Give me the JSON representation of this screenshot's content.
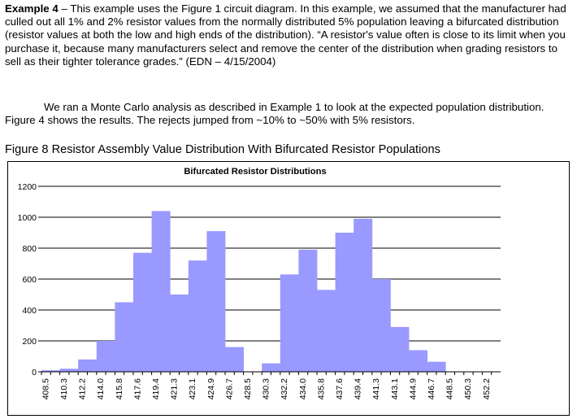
{
  "text": {
    "example_heading": "Example 4",
    "p1_body": " – This example uses the Figure 1 circuit diagram. In this example, we assumed that the manufacturer had culled out all 1% and 2% resistor values from the normally distributed 5% population leaving a bifurcated distribution (resistor values at both the low and high ends of the distribution).  “A resistor's value often is close to its limit when you purchase it, because many manufacturers select and remove the center of the distribution when grading resistors to sell as their tighter tolerance grades.” (EDN – 4/15/2004)",
    "p2": "We ran a Monte Carlo analysis as described in Example 1 to look at the expected population distribution. Figure 4 shows the results. The rejects jumped from ~10% to ~50% with 5% resistors.",
    "figure_caption": "Figure 8 Resistor Assembly Value Distribution With Bifurcated Resistor Populations"
  },
  "chart_data": {
    "type": "bar",
    "title": "Bifurcated Resistor Distributions",
    "xlabel": "",
    "ylabel": "",
    "ylim": [
      0,
      1200
    ],
    "yticks": [
      0,
      200,
      400,
      600,
      800,
      1000,
      1200
    ],
    "grid": true,
    "bar_color": "#9999ff",
    "categories": [
      "408.5",
      "",
      "410.3",
      "",
      "412.2",
      "",
      "414.0",
      "",
      "415.8",
      "",
      "417.6",
      "",
      "419.4",
      "",
      "421.3",
      "",
      "423.1",
      "",
      "424.9",
      "",
      "426.7",
      "",
      "428.5",
      "",
      "430.3",
      "",
      "432.2",
      "",
      "434.0",
      "",
      "435.8",
      "",
      "437.6",
      "",
      "439.4",
      "",
      "441.3",
      "",
      "443.1",
      "",
      "444.9",
      "",
      "446.7",
      "",
      "448.5",
      "",
      "450.3",
      "",
      "452.2",
      ""
    ],
    "values": [
      10,
      10,
      20,
      20,
      80,
      80,
      200,
      200,
      450,
      450,
      770,
      770,
      1040,
      1040,
      500,
      500,
      720,
      720,
      910,
      910,
      160,
      160,
      0,
      0,
      55,
      55,
      630,
      630,
      790,
      790,
      530,
      530,
      900,
      900,
      990,
      990,
      600,
      600,
      290,
      290,
      140,
      140,
      65,
      65,
      0,
      0,
      0,
      0,
      0,
      0
    ]
  }
}
